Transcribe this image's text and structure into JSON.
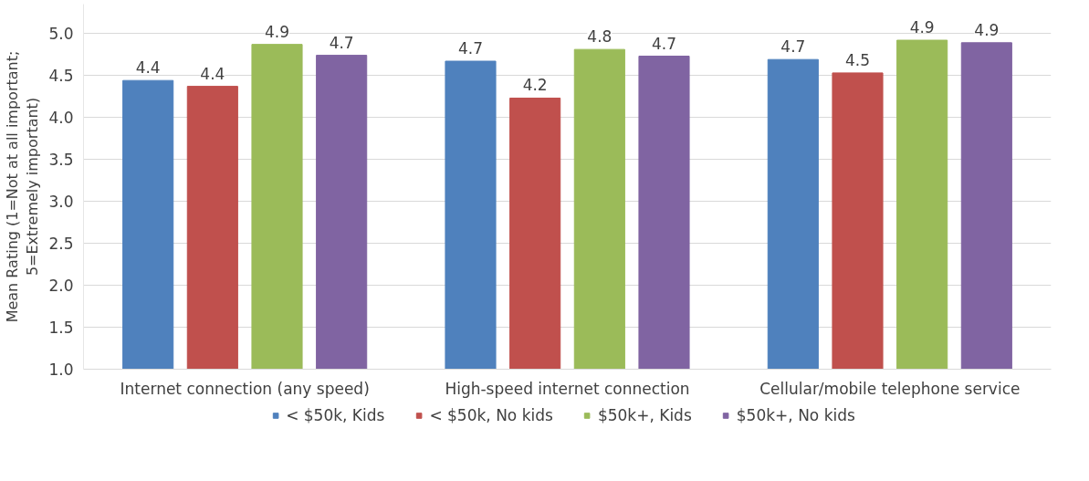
{
  "chart_data": {
    "type": "bar",
    "ylabel": "Mean Rating (1=Not at all important;\n5=Extremely important)",
    "categories": [
      "Internet connection (any speed)",
      "High-speed internet connection",
      "Cellular/mobile telephone service"
    ],
    "series": [
      {
        "name": "< $50k, Kids",
        "color": "#4f81bd",
        "values": [
          4.44,
          4.67,
          4.69
        ],
        "value_labels": [
          "4.4",
          "4.7",
          "4.7"
        ]
      },
      {
        "name": "< $50k, No kids",
        "color": "#c0504d",
        "values": [
          4.37,
          4.23,
          4.53
        ],
        "value_labels": [
          "4.4",
          "4.2",
          "4.5"
        ]
      },
      {
        "name": "$50k+, Kids",
        "color": "#9bbb59",
        "values": [
          4.87,
          4.81,
          4.92
        ],
        "value_labels": [
          "4.9",
          "4.8",
          "4.9"
        ]
      },
      {
        "name": "$50k+, No kids",
        "color": "#8064a2",
        "values": [
          4.74,
          4.73,
          4.89
        ],
        "value_labels": [
          "4.7",
          "4.7",
          "4.9"
        ]
      }
    ],
    "ylim": [
      1.0,
      5.35
    ],
    "yticks": [
      {
        "value": 1,
        "label": "1.0"
      },
      {
        "value": 1.5,
        "label": "1.5"
      },
      {
        "value": 2,
        "label": "2.0"
      },
      {
        "value": 2.5,
        "label": "2.5"
      },
      {
        "value": 3,
        "label": "3.0"
      },
      {
        "value": 3.5,
        "label": "3.5"
      },
      {
        "value": 4,
        "label": "4.0"
      },
      {
        "value": 4.5,
        "label": "4.5"
      },
      {
        "value": 5,
        "label": "5.0"
      }
    ],
    "grid": "y",
    "legend": "bottom"
  }
}
